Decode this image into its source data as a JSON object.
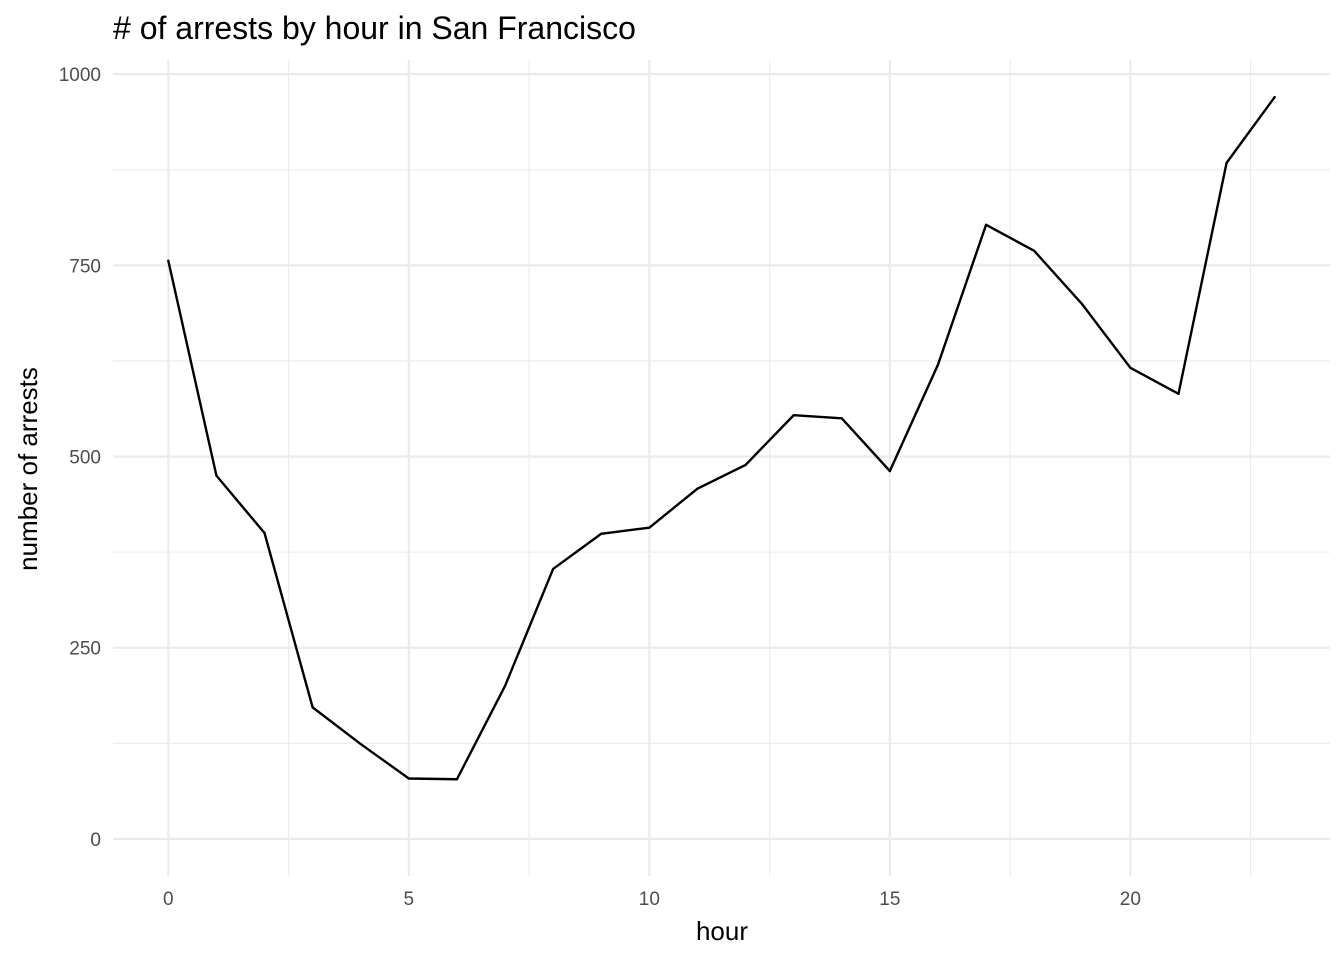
{
  "chart_data": {
    "type": "line",
    "title": "# of arrests by hour in San Francisco",
    "xlabel": "hour",
    "ylabel": "number of arrests",
    "x": [
      0,
      1,
      2,
      3,
      4,
      5,
      6,
      7,
      8,
      9,
      10,
      11,
      12,
      13,
      14,
      15,
      16,
      17,
      18,
      19,
      20,
      21,
      22,
      23
    ],
    "series": [
      {
        "values": [
          756,
          475,
          400,
          172,
          124,
          79,
          78,
          200,
          353,
          399,
          407,
          458,
          489,
          554,
          550,
          481,
          620,
          803,
          769,
          699,
          616,
          582,
          884,
          970
        ]
      }
    ],
    "xlim": [
      -1.15,
      24.15
    ],
    "ylim": [
      -48.5,
      1018.5
    ],
    "xticks": [
      0,
      5,
      10,
      15,
      20
    ],
    "xtick_labels": [
      "0",
      "5",
      "10",
      "15",
      "20"
    ],
    "yticks": [
      0,
      250,
      500,
      750,
      1000
    ],
    "ytick_labels": [
      "0",
      "250",
      "500",
      "750",
      "1000"
    ],
    "grid": true,
    "legend": "none",
    "colors": {
      "line": "#000000",
      "grid": "#ebebeb",
      "tick_text": "#4d4d4d",
      "background": "#ffffff"
    }
  }
}
